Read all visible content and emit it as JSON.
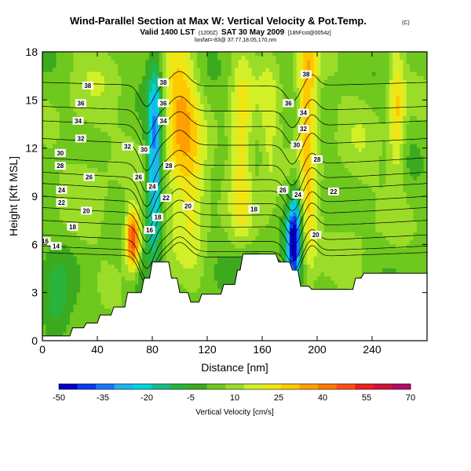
{
  "chart_data": {
    "type": "heatmap",
    "title": "Wind-Parallel Section at Max W: Vertical Velocity & Pot.Temp.",
    "title_mark": "(C)",
    "subtitle_main": "Valid 1400 LST",
    "subtitle_paren": "(1200Z)",
    "subtitle_date": "SAT 30 May 2009",
    "subtitle_tail": "[18hFcst@0054z]",
    "subtitle_small": "lon/lat=-83@ 37.77,18.05,170,nm",
    "xlabel": "Distance [nm]",
    "ylabel": "Height [Kft MSL]",
    "xlim": [
      0,
      280
    ],
    "ylim": [
      0,
      18
    ],
    "xticks": [
      "0",
      "40",
      "80",
      "120",
      "160",
      "200",
      "240"
    ],
    "yticks": [
      "0",
      "3",
      "6",
      "9",
      "12",
      "15",
      "18"
    ],
    "colorbar": {
      "label": "Vertical Velocity [cm/s]",
      "tick_labels": [
        "-50",
        "-35",
        "-20",
        "-5",
        "10",
        "25",
        "40",
        "55",
        "70"
      ],
      "colors": [
        "#0000c8",
        "#0a3cf0",
        "#1478ff",
        "#1eb4f0",
        "#00d2dc",
        "#14be8c",
        "#28b43c",
        "#3caa1e",
        "#6ec81e",
        "#9bdc28",
        "#d2f028",
        "#f0e614",
        "#ffc800",
        "#ffa000",
        "#ff7800",
        "#ff5014",
        "#f01e1e",
        "#d2143c",
        "#b40a64"
      ]
    },
    "velocity_centers": [
      {
        "x": 82,
        "y": 11.5,
        "w": -40,
        "sx": 4,
        "sy": 4.5
      },
      {
        "x": 68,
        "y": 4.5,
        "w": -15,
        "sx": 6,
        "sy": 2
      },
      {
        "x": 66,
        "y": 6.2,
        "w": 60,
        "sx": 4,
        "sy": 1.4
      },
      {
        "x": 100,
        "y": 14,
        "w": 28,
        "sx": 9,
        "sy": 4
      },
      {
        "x": 110,
        "y": 9,
        "w": 15,
        "sx": 7,
        "sy": 3
      },
      {
        "x": 145,
        "y": 12,
        "w": 22,
        "sx": 6,
        "sy": 4
      },
      {
        "x": 165,
        "y": 13,
        "w": 12,
        "sx": 5,
        "sy": 4
      },
      {
        "x": 183,
        "y": 6,
        "w": -55,
        "sx": 3.5,
        "sy": 1.8
      },
      {
        "x": 185,
        "y": 9,
        "w": -8,
        "sx": 3,
        "sy": 1.5
      },
      {
        "x": 193,
        "y": 15,
        "w": 30,
        "sx": 5,
        "sy": 4
      },
      {
        "x": 195,
        "y": 7,
        "w": 18,
        "sx": 4,
        "sy": 2
      },
      {
        "x": 230,
        "y": 11,
        "w": 5,
        "sx": 12,
        "sy": 5
      },
      {
        "x": 35,
        "y": 13,
        "w": 6,
        "sx": 15,
        "sy": 5
      },
      {
        "x": 150,
        "y": 4.5,
        "w": -12,
        "sx": 8,
        "sy": 1
      },
      {
        "x": 258,
        "y": 14,
        "w": 22,
        "sx": 4,
        "sy": 3
      },
      {
        "x": 10,
        "y": 2,
        "w": -15,
        "sx": 8,
        "sy": 2
      }
    ],
    "terrain": [
      {
        "x": 0,
        "h": 0.3
      },
      {
        "x": 20,
        "h": 0.3
      },
      {
        "x": 22,
        "h": 0.8
      },
      {
        "x": 30,
        "h": 0.8
      },
      {
        "x": 32,
        "h": 1.1
      },
      {
        "x": 40,
        "h": 1.1
      },
      {
        "x": 42,
        "h": 1.6
      },
      {
        "x": 50,
        "h": 1.6
      },
      {
        "x": 52,
        "h": 2.1
      },
      {
        "x": 60,
        "h": 2.1
      },
      {
        "x": 62,
        "h": 3.0
      },
      {
        "x": 72,
        "h": 3.0
      },
      {
        "x": 74,
        "h": 3.9
      },
      {
        "x": 78,
        "h": 3.9
      },
      {
        "x": 80,
        "h": 4.9
      },
      {
        "x": 92,
        "h": 4.9
      },
      {
        "x": 94,
        "h": 3.9
      },
      {
        "x": 98,
        "h": 3.9
      },
      {
        "x": 100,
        "h": 3.0
      },
      {
        "x": 106,
        "h": 3.0
      },
      {
        "x": 108,
        "h": 2.4
      },
      {
        "x": 114,
        "h": 2.4
      },
      {
        "x": 116,
        "h": 2.9
      },
      {
        "x": 130,
        "h": 2.9
      },
      {
        "x": 132,
        "h": 3.5
      },
      {
        "x": 140,
        "h": 3.5
      },
      {
        "x": 142,
        "h": 4.4
      },
      {
        "x": 144,
        "h": 4.4
      },
      {
        "x": 146,
        "h": 5.4
      },
      {
        "x": 170,
        "h": 5.4
      },
      {
        "x": 172,
        "h": 4.9
      },
      {
        "x": 180,
        "h": 4.9
      },
      {
        "x": 182,
        "h": 4.4
      },
      {
        "x": 186,
        "h": 4.4
      },
      {
        "x": 188,
        "h": 3.4
      },
      {
        "x": 194,
        "h": 3.4
      },
      {
        "x": 196,
        "h": 3.2
      },
      {
        "x": 226,
        "h": 3.2
      },
      {
        "x": 228,
        "h": 3.9
      },
      {
        "x": 232,
        "h": 3.9
      },
      {
        "x": 234,
        "h": 4.2
      },
      {
        "x": 280,
        "h": 4.2
      }
    ],
    "isentropes": [
      {
        "value": 14,
        "y0": 5.5,
        "dip": 0.5
      },
      {
        "value": 16,
        "y0": 5.9,
        "dip": 0.6
      },
      {
        "value": 18,
        "y0": 6.6,
        "dip": 0.7
      },
      {
        "value": 20,
        "y0": 7.5,
        "dip": 0.7
      },
      {
        "value": 22,
        "y0": 8.3,
        "dip": 0.8
      },
      {
        "value": 24,
        "y0": 9.0,
        "dip": 0.8
      },
      {
        "value": 26,
        "y0": 9.8,
        "dip": 0.8
      },
      {
        "value": 28,
        "y0": 10.5,
        "dip": 0.8
      },
      {
        "value": 30,
        "y0": 11.4,
        "dip": 0.8
      },
      {
        "value": 32,
        "y0": 12.6,
        "dip": 0.7
      },
      {
        "value": 34,
        "y0": 13.7,
        "dip": 0.6
      },
      {
        "value": 36,
        "y0": 14.6,
        "dip": 0.5
      },
      {
        "value": 38,
        "y0": 16.1,
        "dip": 0.4
      }
    ],
    "contour_labels": [
      {
        "text": "38",
        "x": 33,
        "y": 15.9
      },
      {
        "text": "38",
        "x": 88,
        "y": 16.1
      },
      {
        "text": "38",
        "x": 192,
        "y": 16.6
      },
      {
        "text": "36",
        "x": 28,
        "y": 14.8
      },
      {
        "text": "36",
        "x": 88,
        "y": 14.8
      },
      {
        "text": "36",
        "x": 179,
        "y": 14.8
      },
      {
        "text": "34",
        "x": 26,
        "y": 13.7
      },
      {
        "text": "34",
        "x": 88,
        "y": 13.7
      },
      {
        "text": "34",
        "x": 190,
        "y": 14.2
      },
      {
        "text": "32",
        "x": 28,
        "y": 12.6
      },
      {
        "text": "32",
        "x": 62,
        "y": 12.1
      },
      {
        "text": "32",
        "x": 190,
        "y": 13.2
      },
      {
        "text": "30",
        "x": 13,
        "y": 11.7
      },
      {
        "text": "30",
        "x": 74,
        "y": 11.9
      },
      {
        "text": "30",
        "x": 185,
        "y": 12.2
      },
      {
        "text": "28",
        "x": 13,
        "y": 10.9
      },
      {
        "text": "28",
        "x": 92,
        "y": 10.9
      },
      {
        "text": "28",
        "x": 200,
        "y": 11.3
      },
      {
        "text": "26",
        "x": 34,
        "y": 10.2
      },
      {
        "text": "26",
        "x": 70,
        "y": 10.2
      },
      {
        "text": "26",
        "x": 175,
        "y": 9.4
      },
      {
        "text": "24",
        "x": 14,
        "y": 9.4
      },
      {
        "text": "24",
        "x": 80,
        "y": 9.6
      },
      {
        "text": "24",
        "x": 186,
        "y": 9.1
      },
      {
        "text": "22",
        "x": 14,
        "y": 8.6
      },
      {
        "text": "22",
        "x": 90,
        "y": 8.9
      },
      {
        "text": "22",
        "x": 212,
        "y": 9.3
      },
      {
        "text": "20",
        "x": 32,
        "y": 8.1
      },
      {
        "text": "20",
        "x": 106,
        "y": 8.4
      },
      {
        "text": "18",
        "x": 22,
        "y": 7.1
      },
      {
        "text": "18",
        "x": 84,
        "y": 7.7
      },
      {
        "text": "18",
        "x": 154,
        "y": 8.2
      },
      {
        "text": "16",
        "x": 2,
        "y": 6.2
      },
      {
        "text": "16",
        "x": 78,
        "y": 6.9
      },
      {
        "text": "14",
        "x": 10,
        "y": 5.9
      },
      {
        "text": "20",
        "x": 199,
        "y": 6.6
      }
    ]
  }
}
